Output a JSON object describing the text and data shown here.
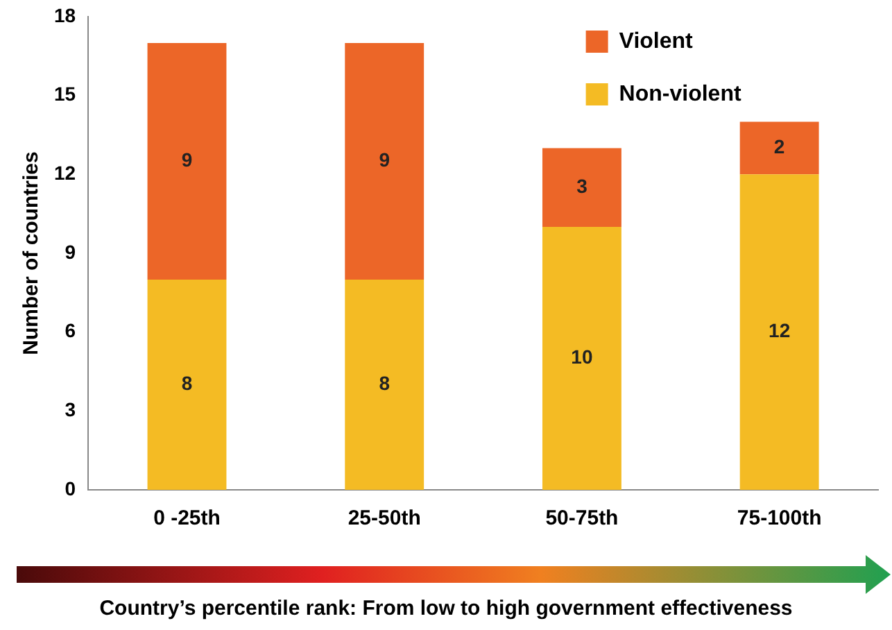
{
  "chart_data": {
    "type": "bar",
    "stacked": true,
    "ylabel": "Number of countries",
    "xlabel": "Country’s percentile rank: From low to high government effectiveness",
    "categories": [
      "0 -25th",
      "25-50th",
      "50-75th",
      "75-100th"
    ],
    "series": [
      {
        "name": "Non-violent",
        "color": "#f4bb24",
        "values": [
          8,
          8,
          10,
          12
        ]
      },
      {
        "name": "Violent",
        "color": "#ec6628",
        "values": [
          9,
          9,
          3,
          2
        ]
      }
    ],
    "ylim": [
      0,
      18
    ],
    "yticks": [
      0,
      3,
      6,
      9,
      12,
      15,
      18
    ],
    "grid": false,
    "legend": "top right",
    "data_labels": true
  }
}
